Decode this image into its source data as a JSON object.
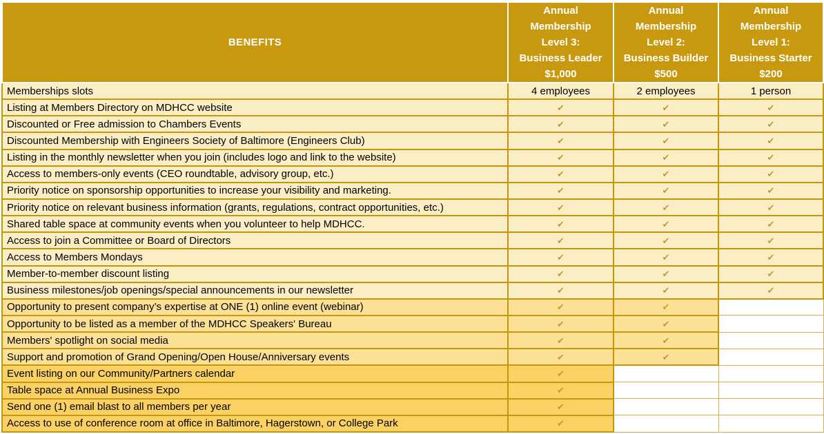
{
  "table": {
    "benefits_header": "BENEFITS",
    "check_glyph": "✔",
    "columns": [
      {
        "label": "Annual\nMembership\nLevel 3:\nBusiness Leader\n$1,000"
      },
      {
        "label": "Annual\nMembership\nLevel 2:\nBusiness Builder\n$500"
      },
      {
        "label": "Annual\nMembership\nLevel 1:\nBusiness Starter\n$200"
      }
    ],
    "rows": [
      {
        "label": "Memberships slots",
        "band": "light",
        "cells": [
          "4 employees",
          "2 employees",
          "1 person"
        ]
      },
      {
        "label": "Listing at Members Directory on MDHCC website",
        "band": "light",
        "cells": [
          "check",
          "check",
          "check"
        ]
      },
      {
        "label": "Discounted or Free admission to Chambers Events",
        "band": "light",
        "cells": [
          "check",
          "check",
          "check"
        ]
      },
      {
        "label": "Discounted Membership with Engineers Society of Baltimore (Engineers Club)",
        "band": "light",
        "cells": [
          "check",
          "check",
          "check"
        ]
      },
      {
        "label": "Listing in the monthly newsletter when you join (includes logo and link to the website)",
        "band": "light",
        "cells": [
          "check",
          "check",
          "check"
        ]
      },
      {
        "label": "Access to members-only events (CEO roundtable, advisory group, etc.)",
        "band": "light",
        "cells": [
          "check",
          "check",
          "check"
        ]
      },
      {
        "label": "Priority notice on sponsorship opportunities to increase your visibility and marketing.",
        "band": "light",
        "cells": [
          "check",
          "check",
          "check"
        ]
      },
      {
        "label": "Priority notice on relevant business information (grants, regulations, contract opportunities, etc.)",
        "band": "light",
        "cells": [
          "check",
          "check",
          "check"
        ]
      },
      {
        "label": "Shared table space at community events when you volunteer to help MDHCC.",
        "band": "light",
        "cells": [
          "check",
          "check",
          "check"
        ]
      },
      {
        "label": "Access to join a Committee or Board of Directors",
        "band": "light",
        "cells": [
          "check",
          "check",
          "check"
        ]
      },
      {
        "label": "Access to Members Mondays",
        "band": "light",
        "cells": [
          "check",
          "check",
          "check"
        ]
      },
      {
        "label": "Member-to-member discount listing",
        "band": "light",
        "cells": [
          "check",
          "check",
          "check"
        ]
      },
      {
        "label": "Business milestones/job openings/special announcements in our newsletter",
        "band": "light",
        "cells": [
          "check",
          "check",
          "check"
        ]
      },
      {
        "label": "Opportunity to present company’s expertise at ONE (1) online event (webinar)",
        "band": "medium",
        "cells": [
          "check",
          "check",
          ""
        ]
      },
      {
        "label": "Opportunity to be listed as a member of the MDHCC Speakers' Bureau",
        "band": "medium",
        "cells": [
          "check",
          "check",
          ""
        ]
      },
      {
        "label": "Members' spotlight on social media",
        "band": "medium",
        "cells": [
          "check",
          "check",
          ""
        ]
      },
      {
        "label": "Support and promotion of Grand Opening/Open House/Anniversary events",
        "band": "medium",
        "cells": [
          "check",
          "check",
          ""
        ]
      },
      {
        "label": "Event listing on our Community/Partners calendar",
        "band": "dark",
        "cells": [
          "check",
          "",
          ""
        ]
      },
      {
        "label": "Table space at Annual Business Expo",
        "band": "dark",
        "cells": [
          "check",
          "",
          ""
        ]
      },
      {
        "label": "Send one (1) email blast to all members per year",
        "band": "dark",
        "cells": [
          "check",
          "",
          ""
        ]
      },
      {
        "label": "Access to use of conference room at office in Baltimore, Hagerstown, or College Park",
        "band": "dark",
        "cells": [
          "check",
          "",
          ""
        ]
      }
    ],
    "colors": {
      "header_bg": "#C8990F",
      "header_text": "#FFFFFF",
      "row_light": "#FBEEC4",
      "row_medium": "#FCE096",
      "row_dark": "#FAD162",
      "border_strong": "#C3970C",
      "border_light": "#D4AF45",
      "check": "#BD9C3F",
      "cell_text": "#000000"
    }
  }
}
